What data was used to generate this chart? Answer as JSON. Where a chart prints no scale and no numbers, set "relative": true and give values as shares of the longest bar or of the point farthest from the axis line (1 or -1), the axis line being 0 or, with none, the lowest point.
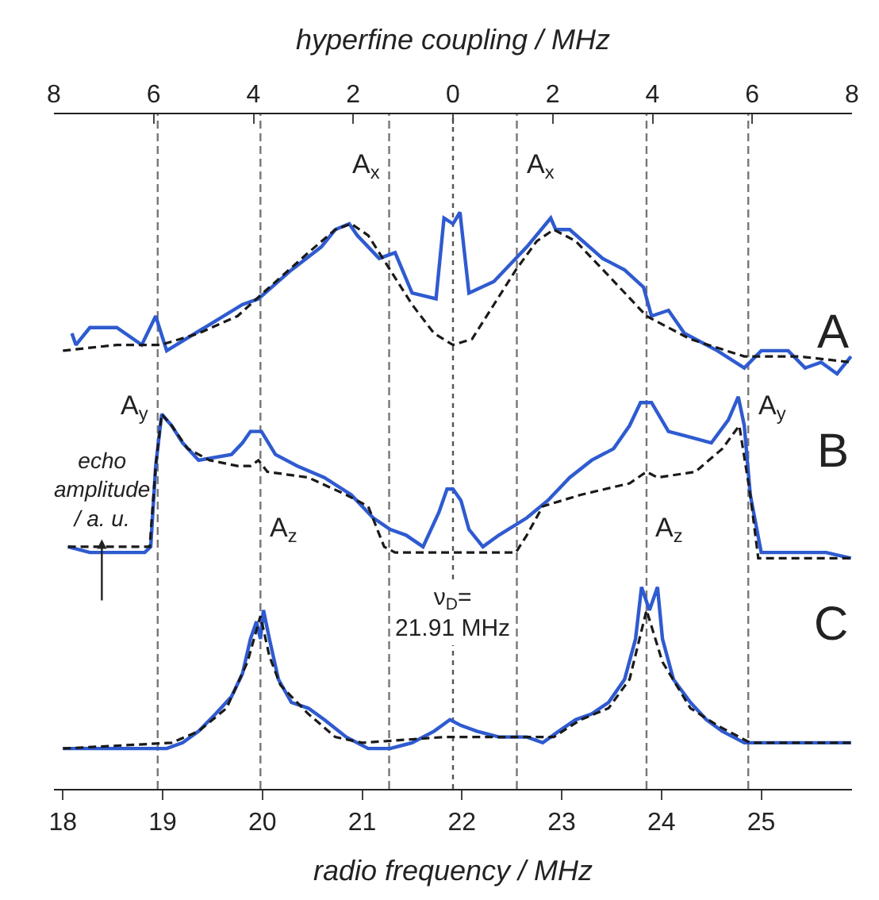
{
  "chart_data": {
    "type": "line",
    "relative": true,
    "xlabel": "radio frequency / MHz",
    "x2label": "hyperfine coupling / MHz",
    "ylabel": "echo\namplitude\n/ a. u.",
    "xlim": [
      17.91,
      25.91
    ],
    "xticks": [
      18,
      19,
      20,
      21,
      22,
      23,
      24,
      25
    ],
    "x2lim": [
      -8,
      8
    ],
    "x2ticks": [
      {
        "value": -8,
        "label": "8"
      },
      {
        "value": -6,
        "label": "6"
      },
      {
        "value": -4,
        "label": "4"
      },
      {
        "value": -2,
        "label": "2"
      },
      0,
      2,
      4,
      6,
      8
    ],
    "marker": "none",
    "series": [
      {
        "color": "#2f5bd0",
        "line_style": "solid",
        "x": [
          18.09,
          18.13,
          18.27,
          18.54,
          18.79,
          18.93,
          19.04,
          19.42,
          19.8,
          19.96,
          20.29,
          20.59,
          20.73,
          20.87,
          20.95,
          21.17,
          21.33,
          21.5,
          21.74,
          21.82,
          21.91,
          21.98,
          22.07,
          22.32,
          22.65,
          22.89,
          22.94,
          23.08,
          23.41,
          23.63,
          23.82,
          23.9,
          24.07,
          24.23,
          24.56,
          24.83,
          25.0,
          25.27,
          25.44,
          25.6,
          25.76,
          25.9
        ],
        "values": [
          0.79,
          0.77,
          0.8,
          0.8,
          0.77,
          0.82,
          0.76,
          0.8,
          0.84,
          0.85,
          0.9,
          0.94,
          0.97,
          0.98,
          0.96,
          0.92,
          0.93,
          0.86,
          0.85,
          0.99,
          0.98,
          1.0,
          0.86,
          0.88,
          0.94,
          0.99,
          0.97,
          0.97,
          0.92,
          0.9,
          0.87,
          0.82,
          0.83,
          0.79,
          0.76,
          0.73,
          0.76,
          0.76,
          0.73,
          0.74,
          0.72,
          0.75
        ]
      },
      {
        "color": "#1a1a1a",
        "line_style": "dashed",
        "x": [
          18.0,
          18.54,
          18.98,
          19.36,
          19.75,
          20.07,
          20.46,
          20.73,
          20.89,
          21.06,
          21.28,
          21.5,
          21.72,
          21.91,
          22.1,
          22.32,
          22.54,
          22.75,
          22.92,
          23.14,
          23.47,
          23.85,
          24.29,
          24.83,
          25.38,
          25.9
        ],
        "values": [
          0.76,
          0.77,
          0.77,
          0.79,
          0.82,
          0.87,
          0.93,
          0.97,
          0.98,
          0.96,
          0.9,
          0.84,
          0.79,
          0.77,
          0.78,
          0.84,
          0.9,
          0.95,
          0.97,
          0.95,
          0.89,
          0.82,
          0.78,
          0.75,
          0.75,
          0.74
        ]
      },
      {
        "color": "#2f5bd0",
        "line_style": "solid",
        "x": [
          18.05,
          18.27,
          18.82,
          18.88,
          18.93,
          18.99,
          19.09,
          19.2,
          19.36,
          19.69,
          19.8,
          19.88,
          19.99,
          20.13,
          20.35,
          20.62,
          20.89,
          21.11,
          21.28,
          21.44,
          21.61,
          21.77,
          21.85,
          21.91,
          21.99,
          22.07,
          22.21,
          22.37,
          22.65,
          22.86,
          23.08,
          23.3,
          23.52,
          23.68,
          23.79,
          23.9,
          24.07,
          24.29,
          24.5,
          24.67,
          24.77,
          24.83,
          24.89,
          25.0,
          25.65,
          25.9
        ],
        "values": [
          0.42,
          0.41,
          0.41,
          0.42,
          0.56,
          0.65,
          0.63,
          0.6,
          0.57,
          0.58,
          0.6,
          0.62,
          0.62,
          0.58,
          0.56,
          0.54,
          0.51,
          0.47,
          0.45,
          0.44,
          0.42,
          0.48,
          0.52,
          0.52,
          0.5,
          0.45,
          0.42,
          0.44,
          0.47,
          0.5,
          0.54,
          0.57,
          0.59,
          0.63,
          0.67,
          0.67,
          0.62,
          0.61,
          0.6,
          0.64,
          0.68,
          0.63,
          0.51,
          0.41,
          0.41,
          0.4
        ]
      },
      {
        "color": "#1a1a1a",
        "line_style": "dashed",
        "x": [
          18.05,
          18.87,
          18.93,
          18.99,
          19.09,
          19.25,
          19.47,
          19.75,
          19.88,
          19.96,
          20.05,
          20.46,
          20.84,
          21.06,
          21.22,
          21.33,
          21.83,
          22.54,
          22.65,
          22.81,
          23.19,
          23.68,
          23.85,
          23.96,
          24.34,
          24.61,
          24.78,
          24.89,
          24.97,
          25.9
        ],
        "values": [
          0.42,
          0.42,
          0.56,
          0.65,
          0.63,
          0.59,
          0.57,
          0.56,
          0.56,
          0.57,
          0.55,
          0.54,
          0.51,
          0.49,
          0.42,
          0.41,
          0.41,
          0.41,
          0.44,
          0.49,
          0.51,
          0.53,
          0.55,
          0.54,
          0.55,
          0.59,
          0.63,
          0.51,
          0.4,
          0.4
        ]
      },
      {
        "color": "#2f5bd0",
        "line_style": "solid",
        "x": [
          18.0,
          18.54,
          19.04,
          19.2,
          19.36,
          19.53,
          19.69,
          19.8,
          19.88,
          19.94,
          19.98,
          20.01,
          20.07,
          20.16,
          20.29,
          20.46,
          20.62,
          20.84,
          21.06,
          21.28,
          21.5,
          21.72,
          21.88,
          21.99,
          22.15,
          22.37,
          22.65,
          22.81,
          22.97,
          23.14,
          23.3,
          23.47,
          23.63,
          23.74,
          23.8,
          23.88,
          23.96,
          24.01,
          24.12,
          24.29,
          24.45,
          24.61,
          24.83,
          25.38,
          25.9
        ],
        "values": [
          0.07,
          0.07,
          0.07,
          0.08,
          0.1,
          0.13,
          0.16,
          0.2,
          0.26,
          0.29,
          0.26,
          0.31,
          0.26,
          0.19,
          0.15,
          0.14,
          0.12,
          0.09,
          0.07,
          0.07,
          0.08,
          0.1,
          0.12,
          0.11,
          0.1,
          0.09,
          0.09,
          0.08,
          0.1,
          0.12,
          0.13,
          0.15,
          0.19,
          0.26,
          0.35,
          0.31,
          0.35,
          0.26,
          0.19,
          0.15,
          0.12,
          0.1,
          0.08,
          0.08,
          0.08
        ]
      },
      {
        "color": "#1a1a1a",
        "line_style": "dashed",
        "x": [
          18.0,
          19.09,
          19.36,
          19.64,
          19.85,
          19.98,
          20.07,
          20.18,
          20.46,
          20.73,
          21.0,
          21.82,
          22.65,
          22.92,
          23.19,
          23.47,
          23.68,
          23.85,
          24.01,
          24.29,
          24.56,
          24.89,
          25.9
        ],
        "values": [
          0.07,
          0.08,
          0.1,
          0.14,
          0.22,
          0.3,
          0.23,
          0.18,
          0.13,
          0.09,
          0.08,
          0.09,
          0.09,
          0.09,
          0.12,
          0.14,
          0.19,
          0.31,
          0.22,
          0.14,
          0.11,
          0.08,
          0.08
        ]
      }
    ],
    "ref_lines": [
      {
        "axis": "x",
        "value": 21.91,
        "label": "ν$_{D}$=\n21.91 MHz",
        "line_style": "dotted",
        "color": "#555555"
      },
      {
        "axis": "x",
        "value": 18.95,
        "line_style": "dashed",
        "color": "#777777"
      },
      {
        "axis": "x",
        "value": 19.98,
        "line_style": "dashed",
        "color": "#777777"
      },
      {
        "axis": "x",
        "value": 21.27,
        "line_style": "dashed",
        "color": "#777777"
      },
      {
        "axis": "x",
        "value": 22.55,
        "line_style": "dashed",
        "color": "#777777"
      },
      {
        "axis": "x",
        "value": 23.85,
        "line_style": "dashed",
        "color": "#777777"
      },
      {
        "axis": "x",
        "value": 24.87,
        "line_style": "dashed",
        "color": "#777777"
      }
    ],
    "annotations": [
      "A",
      "B",
      "C",
      {
        "text": "A$_{x}$",
        "x": 21.27,
        "y": 1.08
      },
      {
        "text": "A$_{x}$",
        "x": 22.55,
        "y": 1.08
      },
      {
        "text": "A$_{y}$",
        "x": 18.95,
        "y": 0.66
      },
      {
        "text": "A$_{y}$",
        "x": 24.87,
        "y": 0.66
      },
      {
        "text": "A$_{z}$",
        "x": 19.98,
        "y": 0.45
      },
      {
        "text": "A$_{z}$",
        "x": 23.85,
        "y": 0.45
      }
    ]
  }
}
